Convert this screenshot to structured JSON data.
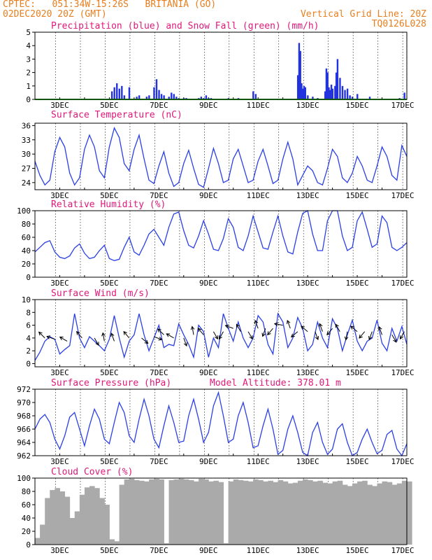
{
  "header": {
    "line1": "CPTEC:   051:34W-15:26S   BRITANIA (GO)",
    "line2_left": "02DEC2020 20Z (GMT)",
    "line2_right": "Vertical Grid Line: 20Z",
    "line3_right": "TQ0126L028"
  },
  "colors": {
    "header": "#e87e1e",
    "title": "#e0187a",
    "line": "#2a3fe6",
    "bar": "#2233dd",
    "snow": "#22aa22",
    "cloud": "#aaaaaa",
    "wind_arrow": "#000000"
  },
  "x_labels": [
    "3DEC",
    "5DEC",
    "7DEC",
    "9DEC",
    "11DEC",
    "13DEC",
    "15DEC",
    "17DEC"
  ],
  "chart_data": [
    {
      "type": "bar",
      "title": "Precipitation (blue) and Snow Fall (green) (mm/h)",
      "ylim": [
        0,
        5
      ],
      "yticks": [
        0,
        1,
        2,
        3,
        4,
        5
      ],
      "x_unit": "day of Dec 2020",
      "series": [
        {
          "name": "Precipitation",
          "x": [
            5.1,
            5.2,
            5.3,
            5.4,
            5.5,
            5.6,
            5.8,
            6.1,
            6.2,
            6.5,
            6.6,
            6.8,
            6.9,
            7.0,
            7.1,
            7.2,
            7.4,
            7.5,
            7.6,
            7.7,
            7.8,
            8.0,
            8.1,
            8.6,
            8.7,
            8.8,
            8.9,
            9.0,
            9.1,
            9.8,
            10.2,
            10.8,
            10.9,
            12.6,
            12.65,
            12.7,
            12.75,
            12.8,
            12.85,
            12.9,
            13.0,
            13.2,
            13.4,
            13.7,
            13.75,
            13.8,
            13.85,
            13.9,
            13.95,
            14.0,
            14.1,
            14.15,
            14.2,
            14.3,
            14.4,
            14.5,
            14.6,
            14.7,
            14.8,
            15.0,
            15.5,
            16.7,
            16.9
          ],
          "values": [
            0.6,
            0.9,
            1.2,
            0.8,
            1.0,
            0.3,
            0.9,
            0.2,
            0.3,
            0.2,
            0.3,
            0.9,
            1.5,
            0.7,
            0.4,
            0.3,
            0.2,
            0.5,
            0.4,
            0.2,
            0.1,
            0.1,
            0.1,
            0.1,
            0.2,
            0.1,
            0.3,
            0.1,
            0.1,
            0.1,
            0.1,
            0.6,
            0.4,
            1.8,
            4.2,
            3.6,
            1.2,
            0.8,
            1.0,
            0.9,
            0.3,
            0.2,
            0.1,
            0.6,
            2.3,
            2.0,
            0.9,
            0.7,
            1.1,
            0.8,
            1.0,
            2.0,
            3.0,
            1.6,
            1.0,
            0.7,
            0.8,
            0.3,
            0.2,
            0.4,
            0.2,
            0.1,
            0.5
          ]
        },
        {
          "name": "Snow Fall",
          "x": [
            2.0,
            17.0
          ],
          "values": [
            0,
            0
          ]
        }
      ]
    },
    {
      "type": "line",
      "title": "Surface Temperature (nC)",
      "ylim": [
        22.5,
        36.5
      ],
      "yticks": [
        24,
        27,
        30,
        33,
        36
      ],
      "x": [
        2.0,
        2.2,
        2.4,
        2.6,
        2.8,
        3.0,
        3.2,
        3.4,
        3.6,
        3.8,
        4.0,
        4.2,
        4.4,
        4.6,
        4.8,
        5.0,
        5.2,
        5.4,
        5.6,
        5.8,
        6.0,
        6.2,
        6.4,
        6.6,
        6.8,
        7.0,
        7.2,
        7.4,
        7.6,
        7.8,
        8.0,
        8.2,
        8.4,
        8.6,
        8.8,
        9.0,
        9.2,
        9.4,
        9.6,
        9.8,
        10.0,
        10.2,
        10.4,
        10.6,
        10.8,
        11.0,
        11.2,
        11.4,
        11.6,
        11.8,
        12.0,
        12.2,
        12.4,
        12.6,
        12.8,
        13.0,
        13.2,
        13.4,
        13.6,
        13.8,
        14.0,
        14.2,
        14.4,
        14.6,
        14.8,
        15.0,
        15.2,
        15.4,
        15.6,
        15.8,
        16.0,
        16.2,
        16.4,
        16.6,
        16.8,
        17.0
      ],
      "values": [
        28.5,
        25.5,
        23.5,
        24.5,
        30.5,
        33.5,
        31.5,
        26.0,
        23.5,
        25.0,
        31.0,
        34.0,
        31.5,
        26.5,
        25.0,
        31.5,
        35.5,
        33.5,
        28.0,
        26.5,
        31.0,
        34.0,
        29.0,
        24.5,
        23.8,
        27.5,
        30.5,
        26.0,
        23.2,
        24.0,
        28.0,
        30.8,
        27.0,
        23.6,
        23.0,
        27.0,
        31.2,
        28.0,
        24.0,
        24.5,
        29.0,
        31.0,
        27.5,
        24.0,
        24.5,
        28.5,
        31.0,
        27.5,
        23.8,
        24.5,
        29.0,
        32.5,
        29.0,
        23.5,
        25.5,
        27.5,
        26.5,
        24.0,
        23.5,
        27.0,
        31.0,
        29.5,
        25.0,
        24.0,
        26.0,
        29.5,
        27.5,
        24.5,
        24.0,
        27.5,
        31.5,
        29.5,
        25.5,
        24.5,
        31.8,
        29.5
      ]
    },
    {
      "type": "line",
      "title": "Relative Humidity (%)",
      "ylim": [
        0,
        100
      ],
      "yticks": [
        0,
        20,
        40,
        60,
        80,
        100
      ],
      "x": [
        2.0,
        2.2,
        2.4,
        2.6,
        2.8,
        3.0,
        3.2,
        3.4,
        3.6,
        3.8,
        4.0,
        4.2,
        4.4,
        4.6,
        4.8,
        5.0,
        5.2,
        5.4,
        5.6,
        5.8,
        6.0,
        6.2,
        6.4,
        6.6,
        6.8,
        7.0,
        7.2,
        7.4,
        7.6,
        7.8,
        8.0,
        8.2,
        8.4,
        8.6,
        8.8,
        9.0,
        9.2,
        9.4,
        9.6,
        9.8,
        10.0,
        10.2,
        10.4,
        10.6,
        10.8,
        11.0,
        11.2,
        11.4,
        11.6,
        11.8,
        12.0,
        12.2,
        12.4,
        12.6,
        12.8,
        13.0,
        13.2,
        13.4,
        13.6,
        13.8,
        14.0,
        14.2,
        14.4,
        14.6,
        14.8,
        15.0,
        15.2,
        15.4,
        15.6,
        15.8,
        16.0,
        16.2,
        16.4,
        16.6,
        16.8,
        17.0
      ],
      "values": [
        38,
        45,
        52,
        55,
        38,
        30,
        28,
        32,
        44,
        50,
        36,
        28,
        30,
        40,
        48,
        28,
        25,
        27,
        45,
        60,
        38,
        33,
        48,
        65,
        72,
        60,
        48,
        75,
        95,
        98,
        70,
        48,
        44,
        62,
        85,
        65,
        42,
        40,
        58,
        88,
        75,
        45,
        40,
        62,
        92,
        68,
        44,
        42,
        68,
        92,
        62,
        38,
        35,
        68,
        96,
        100,
        65,
        40,
        40,
        85,
        100,
        100,
        62,
        40,
        45,
        85,
        98,
        72,
        45,
        50,
        92,
        82,
        45,
        40,
        45,
        52
      ]
    },
    {
      "type": "line",
      "title": "Surface Wind (m/s)",
      "ylim": [
        -0.5,
        10
      ],
      "yticks": [
        0,
        2,
        4,
        6,
        8,
        10
      ],
      "x": [
        2.0,
        2.2,
        2.4,
        2.6,
        2.8,
        3.0,
        3.2,
        3.4,
        3.6,
        3.8,
        4.0,
        4.2,
        4.4,
        4.6,
        4.8,
        5.0,
        5.2,
        5.4,
        5.6,
        5.8,
        6.0,
        6.2,
        6.4,
        6.6,
        6.8,
        7.0,
        7.2,
        7.4,
        7.6,
        7.8,
        8.0,
        8.2,
        8.4,
        8.6,
        8.8,
        9.0,
        9.2,
        9.4,
        9.6,
        9.8,
        10.0,
        10.2,
        10.4,
        10.6,
        10.8,
        11.0,
        11.2,
        11.4,
        11.6,
        11.8,
        12.0,
        12.2,
        12.4,
        12.6,
        12.8,
        13.0,
        13.2,
        13.4,
        13.6,
        13.8,
        14.0,
        14.2,
        14.4,
        14.6,
        14.8,
        15.0,
        15.2,
        15.4,
        15.6,
        15.8,
        16.0,
        16.2,
        16.4,
        16.6,
        16.8,
        17.0
      ],
      "values": [
        0.5,
        1.8,
        3.5,
        4.2,
        3.8,
        1.5,
        2.2,
        2.8,
        7.8,
        4.0,
        2.5,
        4.2,
        3.5,
        2.8,
        2.0,
        3.8,
        7.5,
        4.0,
        1.0,
        3.5,
        4.5,
        7.8,
        4.5,
        2.0,
        4.0,
        6.0,
        2.5,
        3.0,
        2.8,
        6.2,
        4.5,
        3.0,
        1.0,
        6.0,
        5.0,
        1.0,
        4.0,
        2.5,
        7.8,
        5.5,
        3.5,
        6.5,
        4.0,
        2.5,
        4.0,
        7.5,
        6.5,
        3.0,
        1.5,
        7.8,
        6.5,
        2.5,
        4.0,
        7.2,
        5.5,
        2.0,
        3.0,
        6.5,
        4.0,
        2.5,
        7.0,
        5.5,
        2.0,
        4.5,
        6.8,
        3.5,
        2.0,
        3.5,
        4.0,
        6.8,
        3.2,
        2.0,
        5.5,
        3.5,
        5.8,
        3.0
      ],
      "arrow_x": [
        2.4,
        2.8,
        3.3,
        3.9,
        4.4,
        4.8,
        5.2,
        5.8,
        6.3,
        6.8,
        7.2,
        7.6,
        8.0,
        8.4,
        8.8,
        9.2,
        9.6,
        10.0,
        10.3,
        10.6,
        11.0,
        11.3,
        11.6,
        12.0,
        12.3,
        12.6,
        13.0,
        13.3,
        13.6,
        14.0,
        14.3,
        14.6,
        15.0,
        15.3,
        15.6,
        16.0,
        16.4,
        16.9
      ],
      "arrow_speed": [
        4,
        3.8,
        3.5,
        4,
        4,
        3.5,
        3.5,
        4,
        4,
        4.2,
        4.5,
        4,
        4,
        4.5,
        4.5,
        5,
        5,
        5.5,
        5,
        5,
        5.5,
        5.5,
        5.5,
        6,
        5.5,
        5,
        5,
        5,
        5,
        5.5,
        5,
        5,
        5,
        5,
        5,
        4.5,
        4.5,
        5
      ],
      "arrow_dir_deg": [
        225,
        200,
        210,
        230,
        60,
        260,
        250,
        230,
        40,
        20,
        225,
        210,
        70,
        260,
        230,
        60,
        120,
        200,
        240,
        60,
        250,
        110,
        130,
        190,
        250,
        140,
        220,
        70,
        250,
        130,
        240,
        100,
        220,
        130,
        110,
        250,
        60,
        120
      ]
    },
    {
      "type": "line",
      "title": "Surface Pressure (hPa)",
      "annotation": "Model Altitude: 378.01 m",
      "ylim": [
        962,
        972
      ],
      "yticks": [
        962,
        964,
        966,
        968,
        970,
        972
      ],
      "x": [
        2.0,
        2.2,
        2.4,
        2.6,
        2.8,
        3.0,
        3.2,
        3.4,
        3.6,
        3.8,
        4.0,
        4.2,
        4.4,
        4.6,
        4.8,
        5.0,
        5.2,
        5.4,
        5.6,
        5.8,
        6.0,
        6.2,
        6.4,
        6.6,
        6.8,
        7.0,
        7.2,
        7.4,
        7.6,
        7.8,
        8.0,
        8.2,
        8.4,
        8.6,
        8.8,
        9.0,
        9.2,
        9.4,
        9.6,
        9.8,
        10.0,
        10.2,
        10.4,
        10.6,
        10.8,
        11.0,
        11.2,
        11.4,
        11.6,
        11.8,
        12.0,
        12.2,
        12.4,
        12.6,
        12.8,
        13.0,
        13.2,
        13.4,
        13.6,
        13.8,
        14.0,
        14.2,
        14.4,
        14.6,
        14.8,
        15.0,
        15.2,
        15.4,
        15.6,
        15.8,
        16.0,
        16.2,
        16.4,
        16.6,
        16.8,
        17.0
      ],
      "values": [
        966.0,
        967.5,
        968.2,
        967.0,
        964.5,
        963.0,
        965.0,
        967.8,
        968.5,
        966.0,
        963.5,
        966.5,
        969.0,
        967.5,
        964.5,
        963.8,
        967.0,
        970.0,
        968.5,
        965.0,
        964.0,
        967.5,
        970.5,
        968.0,
        964.5,
        963.2,
        966.5,
        969.5,
        967.0,
        964.0,
        964.2,
        968.0,
        970.5,
        967.5,
        964.0,
        965.5,
        969.5,
        971.5,
        968.0,
        964.0,
        964.5,
        968.0,
        970.0,
        967.0,
        963.2,
        963.5,
        966.5,
        969.0,
        966.0,
        962.2,
        962.8,
        966.0,
        968.0,
        965.5,
        962.5,
        962.0,
        965.5,
        967.0,
        964.0,
        962.2,
        963.0,
        966.0,
        966.8,
        964.0,
        962.0,
        962.5,
        964.5,
        966.0,
        964.0,
        962.3,
        962.8,
        965.2,
        965.8,
        963.0,
        962.0,
        963.8
      ]
    },
    {
      "type": "bar",
      "title": "Cloud Cover (%)",
      "ylim": [
        0,
        100
      ],
      "yticks": [
        0,
        20,
        40,
        60,
        80,
        100
      ],
      "x": [
        2.0,
        2.2,
        2.4,
        2.6,
        2.8,
        3.0,
        3.2,
        3.4,
        3.6,
        3.8,
        4.0,
        4.2,
        4.4,
        4.6,
        4.8,
        5.0,
        5.2,
        5.4,
        5.6,
        5.8,
        6.0,
        6.2,
        6.4,
        6.6,
        6.8,
        7.0,
        7.2,
        7.4,
        7.6,
        7.8,
        8.0,
        8.2,
        8.4,
        8.6,
        8.8,
        9.0,
        9.2,
        9.4,
        9.6,
        9.8,
        10.0,
        10.2,
        10.4,
        10.6,
        10.8,
        11.0,
        11.2,
        11.4,
        11.6,
        11.8,
        12.0,
        12.2,
        12.4,
        12.6,
        12.8,
        13.0,
        13.2,
        13.4,
        13.6,
        13.8,
        14.0,
        14.2,
        14.4,
        14.6,
        14.8,
        15.0,
        15.2,
        15.4,
        15.6,
        15.8,
        16.0,
        16.2,
        16.4,
        16.6,
        16.8,
        17.0
      ],
      "values": [
        10,
        30,
        70,
        82,
        85,
        80,
        72,
        40,
        50,
        75,
        86,
        88,
        85,
        70,
        60,
        8,
        5,
        90,
        98,
        99,
        97,
        96,
        95,
        98,
        99,
        98,
        2,
        97,
        98,
        99,
        98,
        97,
        95,
        99,
        98,
        95,
        96,
        94,
        2,
        95,
        98,
        97,
        96,
        95,
        98,
        97,
        95,
        96,
        94,
        97,
        95,
        92,
        93,
        96,
        98,
        97,
        95,
        96,
        93,
        92,
        95,
        96,
        90,
        88,
        92,
        95,
        96,
        90,
        88,
        92,
        95,
        94,
        90,
        92,
        96,
        95
      ]
    }
  ]
}
